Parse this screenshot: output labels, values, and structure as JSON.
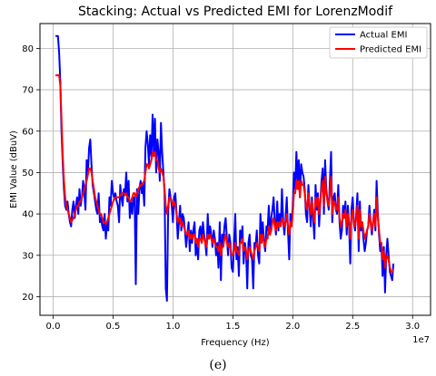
{
  "caption": "(e)",
  "chart_data": {
    "type": "line",
    "title": "Stacking: Actual vs Predicted EMI for LorenzModif",
    "xlabel": "Frequency (Hz)",
    "ylabel": "EMI Value (dBuV)",
    "x_offset_label": "1e7",
    "xlim": [
      -1.1,
      31.5
    ],
    "ylim": [
      15.5,
      86
    ],
    "xticks": [
      0,
      5,
      10,
      15,
      20,
      25,
      30
    ],
    "xtick_labels": [
      "0.0",
      "0.5",
      "1.0",
      "1.5",
      "2.0",
      "2.5",
      "3.0"
    ],
    "yticks": [
      20,
      30,
      40,
      50,
      60,
      70,
      80
    ],
    "ytick_labels": [
      "20",
      "30",
      "40",
      "50",
      "60",
      "70",
      "80"
    ],
    "grid": true,
    "legend_position": "top-right",
    "x_step": 0.1,
    "series": [
      {
        "name": "Actual EMI",
        "color": "#0000ff",
        "x_start": 0.2,
        "values": [
          83,
          83,
          83,
          79,
          72,
          60,
          52,
          46,
          42,
          41,
          43,
          40,
          38,
          37,
          41,
          43,
          39,
          42,
          44,
          40,
          46,
          42,
          44,
          48,
          45,
          41,
          53,
          50,
          56,
          58,
          52,
          47,
          45,
          43,
          41,
          40,
          45,
          38,
          39,
          37,
          36,
          40,
          34,
          38,
          36,
          44,
          42,
          48,
          45,
          44,
          45,
          43,
          42,
          38,
          47,
          44,
          42,
          46,
          45,
          50,
          43,
          48,
          39,
          43,
          40,
          44,
          44,
          23,
          46,
          40,
          46,
          48,
          45,
          47,
          42,
          56,
          60,
          57,
          52,
          59,
          54,
          64,
          55,
          63,
          50,
          58,
          55,
          48,
          62,
          55,
          50,
          45,
          22,
          19,
          40,
          46,
          44,
          42,
          38,
          44,
          45,
          40,
          34,
          38,
          42,
          36,
          40,
          39,
          36,
          32,
          35,
          38,
          31,
          36,
          33,
          36,
          38,
          30,
          34,
          29,
          36,
          37,
          33,
          38,
          35,
          33,
          30,
          40,
          34,
          37,
          35,
          32,
          36,
          34,
          30,
          33,
          27,
          38,
          24,
          35,
          33,
          37,
          39,
          34,
          30,
          35,
          33,
          27,
          26,
          33,
          40,
          29,
          32,
          25,
          36,
          34,
          37,
          28,
          33,
          31,
          22,
          33,
          35,
          30,
          29,
          22,
          33,
          32,
          36,
          30,
          28,
          40,
          34,
          38,
          33,
          31,
          37,
          36,
          42,
          35,
          39,
          41,
          44,
          38,
          35,
          43,
          36,
          40,
          37,
          46,
          38,
          35,
          39,
          44,
          36,
          29,
          40,
          37,
          42,
          50,
          46,
          55,
          48,
          53,
          44,
          52,
          50,
          49,
          46,
          40,
          38,
          47,
          42,
          37,
          44,
          39,
          34,
          47,
          41,
          45,
          37,
          43,
          48,
          51,
          40,
          53,
          46,
          43,
          41,
          48,
          55,
          38,
          44,
          45,
          41,
          40,
          47,
          38,
          34,
          36,
          42,
          39,
          43,
          35,
          42,
          37,
          28,
          41,
          44,
          38,
          36,
          40,
          45,
          31,
          43,
          36,
          38,
          34,
          31,
          33,
          36,
          37,
          42,
          38,
          35,
          38,
          41,
          36,
          48,
          40,
          35,
          31,
          33,
          25,
          32,
          21,
          30,
          34,
          30,
          26,
          25,
          24,
          28
        ],
        "note": ""
      },
      {
        "name": "Predicted EMI",
        "color": "#ff0000",
        "x_start": 0.2,
        "values": [
          73.5,
          73.5,
          73.5,
          73.5,
          71,
          63,
          54,
          48,
          44,
          42,
          41,
          40,
          39,
          38,
          38.5,
          39,
          40,
          41,
          42,
          42,
          43,
          43,
          44,
          45,
          46,
          47,
          48,
          49.5,
          51,
          51,
          50,
          48,
          46,
          44,
          43,
          42,
          41,
          40,
          40,
          39,
          38,
          38,
          37.5,
          38,
          39,
          40,
          41,
          42,
          43,
          43.5,
          44,
          44,
          44,
          44,
          44.5,
          45,
          45,
          45,
          44.5,
          45,
          44,
          44,
          43,
          43,
          44,
          45,
          45,
          44,
          45,
          46,
          46.5,
          47,
          47,
          47.5,
          48,
          50,
          52,
          52,
          51,
          52,
          53,
          55,
          54,
          55,
          53,
          53,
          51,
          50,
          51,
          50,
          49,
          46,
          42,
          40,
          42,
          44,
          44,
          43,
          42,
          43,
          42,
          40,
          38,
          39,
          39,
          37,
          38,
          37,
          36,
          35,
          35,
          36,
          34,
          35,
          34,
          35,
          35,
          33,
          34,
          32,
          34,
          34,
          33,
          35,
          34,
          33,
          32,
          35,
          34,
          35,
          34,
          33,
          34,
          33,
          32,
          32,
          31,
          33,
          30,
          32,
          32,
          34,
          35,
          33,
          32,
          33,
          32,
          30,
          30,
          31,
          33,
          31,
          31,
          30,
          33,
          33,
          34,
          31,
          32,
          31,
          29,
          31,
          32,
          31,
          30,
          29,
          31,
          32,
          33,
          32,
          31,
          35,
          33,
          35,
          33,
          32,
          34,
          34,
          37,
          35,
          36,
          38,
          39,
          37,
          36,
          38,
          37,
          38,
          37,
          39,
          38,
          37,
          38,
          40,
          37,
          35,
          38,
          37,
          40,
          45,
          45,
          48,
          46,
          48,
          44,
          48,
          47,
          47,
          45,
          42,
          41,
          45,
          42,
          40,
          43,
          40,
          38,
          44,
          42,
          44,
          40,
          43,
          46,
          48,
          42,
          49,
          45,
          43,
          42,
          45,
          49,
          40,
          43,
          43,
          41,
          41,
          44,
          39,
          37,
          38,
          40,
          39,
          41,
          37,
          40,
          38,
          34,
          39,
          41,
          38,
          37,
          39,
          42,
          34,
          41,
          37,
          38,
          36,
          34,
          35,
          36,
          37,
          40,
          38,
          36,
          38,
          40,
          37,
          44,
          39,
          36,
          33,
          33,
          29,
          31,
          27,
          29,
          30,
          29,
          27,
          26,
          26,
          26.5
        ]
      }
    ]
  }
}
